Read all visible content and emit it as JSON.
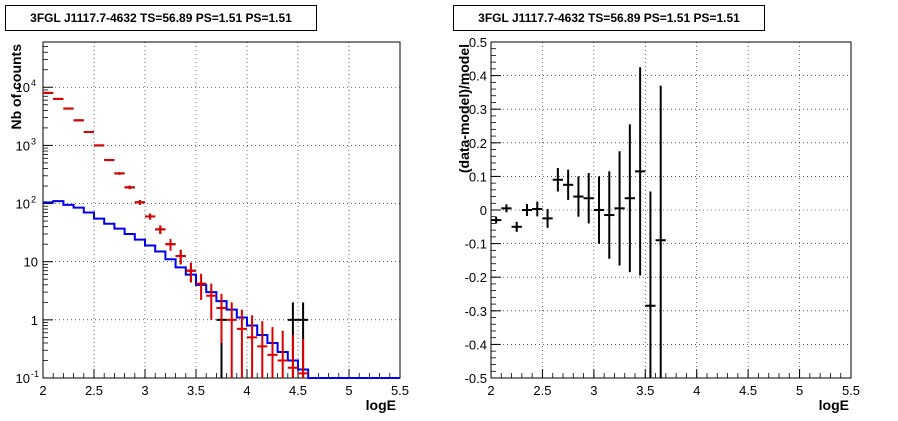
{
  "chart_data": [
    {
      "type": "histogram",
      "title": "3FGL J1117.7-4632 TS=56.89 PS=1.51 PS=1.51",
      "xlabel": "logE",
      "ylabel": "Nb of counts",
      "xlim": [
        2,
        5.5
      ],
      "ylim": [
        0.1,
        60000
      ],
      "yscale": "log",
      "grid": true,
      "x_ticks": [
        "2",
        "2.5",
        "3",
        "3.5",
        "4",
        "4.5",
        "5",
        "5.5"
      ],
      "y_ticks": [
        {
          "value": 0.1,
          "base": "10",
          "exp": "-1"
        },
        {
          "value": 1,
          "base": "1",
          "exp": ""
        },
        {
          "value": 10,
          "base": "10",
          "exp": ""
        },
        {
          "value": 100,
          "base": "10",
          "exp": "2"
        },
        {
          "value": 1000,
          "base": "10",
          "exp": "3"
        },
        {
          "value": 10000,
          "base": "10",
          "exp": "4"
        }
      ],
      "bin_edges": [
        2.0,
        2.1,
        2.2,
        2.3,
        2.4,
        2.5,
        2.6,
        2.7,
        2.8,
        2.9,
        3.0,
        3.1,
        3.2,
        3.3,
        3.4,
        3.5,
        3.6,
        3.7,
        3.8,
        3.9,
        4.0,
        4.1,
        4.2,
        4.3,
        4.4,
        4.5,
        4.6
      ],
      "series": [
        {
          "color": "#dd0000",
          "style": "points",
          "x": [
            2.05,
            2.15,
            2.25,
            2.35,
            2.45,
            2.55,
            2.65,
            2.75,
            2.85,
            2.95,
            3.05,
            3.15,
            3.25,
            3.35,
            3.45,
            3.55,
            3.65,
            3.75,
            3.85,
            3.95,
            4.05,
            4.15,
            4.25,
            4.35,
            4.45,
            4.55
          ],
          "values": [
            8000,
            6300,
            4300,
            2700,
            1700,
            1000,
            560,
            330,
            190,
            105,
            60,
            36,
            20,
            12.5,
            7,
            4.2,
            2.6,
            1.6,
            1.0,
            0.7,
            0.5,
            0.35,
            0.25,
            0.2,
            0.15,
            0.12
          ],
          "err_low": [
            80,
            70,
            60,
            50,
            40,
            30,
            22,
            17,
            13,
            10,
            7,
            6,
            4.5,
            3.5,
            2.6,
            2.0,
            1.6,
            1.2,
            1.0,
            0.8,
            0.7,
            0.6,
            0.5,
            0.45,
            0.4,
            0.35
          ],
          "err_high": [
            80,
            70,
            60,
            50,
            40,
            30,
            22,
            17,
            13,
            10,
            7,
            6,
            4.5,
            3.5,
            2.6,
            2.0,
            1.6,
            1.2,
            1.0,
            0.8,
            0.7,
            0.6,
            0.5,
            0.45,
            0.4,
            0.35
          ]
        },
        {
          "color": "#000000",
          "style": "points",
          "x": [
            2.05,
            2.15,
            2.25,
            2.35,
            2.45,
            2.55,
            2.65,
            2.75,
            2.85,
            2.95,
            3.05,
            3.15,
            3.25,
            3.35,
            3.45,
            3.75,
            4.45,
            4.55
          ],
          "values": [
            8000,
            6300,
            4300,
            2700,
            1700,
            1000,
            560,
            330,
            190,
            105,
            60,
            36,
            20,
            12.5,
            7,
            1,
            1,
            1
          ],
          "err_low": [
            80,
            70,
            60,
            50,
            40,
            30,
            22,
            17,
            13,
            10,
            7,
            6,
            4.5,
            3.5,
            2.6,
            0.9,
            0.9,
            0.9
          ],
          "err_high": [
            80,
            70,
            60,
            50,
            40,
            30,
            22,
            17,
            13,
            10,
            7,
            6,
            4.5,
            3.5,
            2.6,
            1.0,
            1.0,
            1.0
          ]
        },
        {
          "color": "#0000ee",
          "style": "step",
          "x": [
            2.0,
            2.1,
            2.2,
            2.3,
            2.4,
            2.5,
            2.6,
            2.7,
            2.8,
            2.9,
            3.0,
            3.1,
            3.2,
            3.3,
            3.4,
            3.5,
            3.6,
            3.7,
            3.8,
            3.9,
            4.0,
            4.1,
            4.2,
            4.3,
            4.4,
            4.5,
            4.6
          ],
          "values": [
            105,
            110,
            95,
            85,
            70,
            55,
            45,
            37,
            30,
            24,
            19,
            15,
            11,
            8,
            6,
            4,
            3,
            2.1,
            1.5,
            1.1,
            0.8,
            0.55,
            0.4,
            0.28,
            0.2,
            0.14,
            0.1
          ]
        }
      ]
    },
    {
      "type": "scatter",
      "title": "3FGL J1117.7-4632 TS=56.89 PS=1.51 PS=1.51",
      "xlabel": "logE",
      "ylabel": "(data-model)/model",
      "xlim": [
        2,
        5.5
      ],
      "ylim": [
        -0.5,
        0.5
      ],
      "grid": true,
      "x_ticks": [
        "2",
        "2.5",
        "3",
        "3.5",
        "4",
        "4.5",
        "5",
        "5.5"
      ],
      "y_ticks": [
        "-0.5",
        "-0.4",
        "-0.3",
        "-0.2",
        "-0.1",
        "0",
        "0.1",
        "0.2",
        "0.3",
        "0.4",
        "0.5"
      ],
      "series": [
        {
          "color": "#000000",
          "x": [
            2.05,
            2.15,
            2.25,
            2.35,
            2.45,
            2.55,
            2.65,
            2.75,
            2.85,
            2.95,
            3.05,
            3.15,
            3.25,
            3.35,
            3.45,
            3.55,
            3.65
          ],
          "values": [
            -0.03,
            0.005,
            -0.05,
            0.0,
            0.003,
            -0.025,
            0.09,
            0.075,
            0.04,
            0.035,
            0.0,
            -0.015,
            0.005,
            0.035,
            0.115,
            -0.285,
            -0.09
          ],
          "err_low": [
            0.01,
            0.012,
            0.015,
            0.018,
            0.022,
            0.028,
            0.035,
            0.045,
            0.06,
            0.075,
            0.1,
            0.13,
            0.17,
            0.22,
            0.31,
            0.5,
            0.5
          ],
          "err_high": [
            0.01,
            0.012,
            0.015,
            0.018,
            0.022,
            0.028,
            0.035,
            0.045,
            0.06,
            0.075,
            0.1,
            0.13,
            0.17,
            0.22,
            0.31,
            0.34,
            0.46
          ]
        }
      ]
    }
  ]
}
